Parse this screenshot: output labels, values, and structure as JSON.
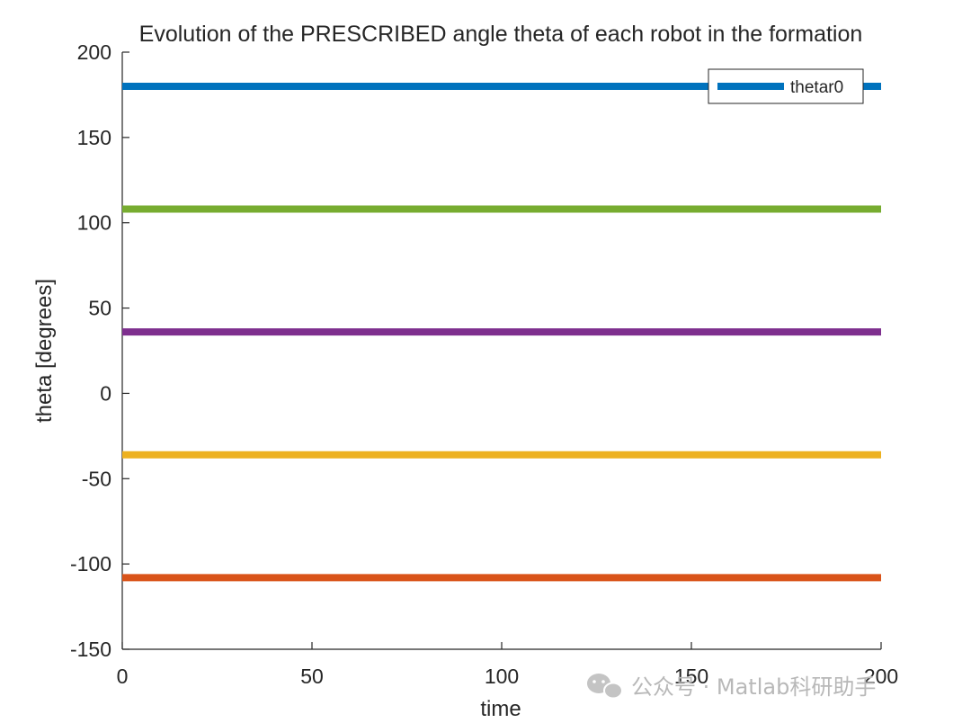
{
  "chart_data": {
    "type": "line",
    "title": "Evolution of the PRESCRIBED angle theta of each robot in the formation",
    "xlabel": "time",
    "ylabel": "theta [degrees]",
    "xlim": [
      0,
      200
    ],
    "ylim": [
      -150,
      200
    ],
    "xticks": [
      0,
      50,
      100,
      150,
      200
    ],
    "yticks": [
      -150,
      -100,
      -50,
      0,
      50,
      100,
      150,
      200
    ],
    "grid": false,
    "legend_position": "top-right",
    "legend": [
      "thetar0"
    ],
    "series": [
      {
        "name": "thetar0",
        "color": "#0072BD",
        "x": [
          0,
          200
        ],
        "y": [
          180,
          180
        ]
      },
      {
        "color": "#D95319",
        "x": [
          0,
          200
        ],
        "y": [
          -108,
          -108
        ]
      },
      {
        "color": "#EDB120",
        "x": [
          0,
          200
        ],
        "y": [
          -36,
          -36
        ]
      },
      {
        "color": "#7E2F8E",
        "x": [
          0,
          200
        ],
        "y": [
          36,
          36
        ]
      },
      {
        "color": "#77AC30",
        "x": [
          0,
          200
        ],
        "y": [
          108,
          108
        ]
      }
    ]
  },
  "watermark": {
    "icon": "wechat-icon",
    "text": "公众号 · Matlab科研助手"
  }
}
